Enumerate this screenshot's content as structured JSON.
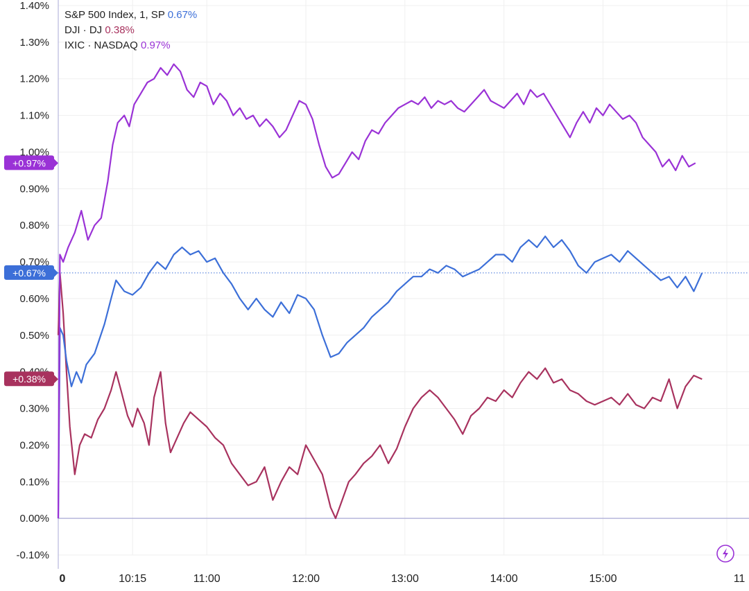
{
  "chart_data": {
    "type": "line",
    "ylim": [
      -0.1,
      1.4
    ],
    "yticks": [
      "1.40%",
      "1.30%",
      "1.20%",
      "1.10%",
      "1.00%",
      "0.90%",
      "0.80%",
      "0.70%",
      "0.60%",
      "0.50%",
      "0.40%",
      "0.30%",
      "0.20%",
      "0.10%",
      "0.00%",
      "-0.10%"
    ],
    "ytick_values": [
      1.4,
      1.3,
      1.2,
      1.1,
      1.0,
      0.9,
      0.8,
      0.7,
      0.6,
      0.5,
      0.4,
      0.3,
      0.2,
      0.1,
      0.0,
      -0.1
    ],
    "xlim": [
      "09:30",
      "16:15"
    ],
    "xticks": [
      {
        "label": "0",
        "time": "09:30",
        "bold": true
      },
      {
        "label": "10:15",
        "time": "10:15"
      },
      {
        "label": "11:00",
        "time": "11:00"
      },
      {
        "label": "12:00",
        "time": "12:00"
      },
      {
        "label": "13:00",
        "time": "13:00"
      },
      {
        "label": "14:00",
        "time": "14:00"
      },
      {
        "label": "15:00",
        "time": "15:00"
      },
      {
        "label": "11",
        "time": "16:15"
      }
    ],
    "grid": true,
    "legend_position": "top-left",
    "series": [
      {
        "name": "S&P 500 Index, 1, SP",
        "last_label": "0.67%",
        "badge": "+0.67%",
        "last_value": 0.67,
        "color": "#3c6fd8",
        "points": [
          [
            "09:30",
            0.0
          ],
          [
            "09:31",
            0.52
          ],
          [
            "09:33",
            0.5
          ],
          [
            "09:35",
            0.43
          ],
          [
            "09:38",
            0.36
          ],
          [
            "09:41",
            0.4
          ],
          [
            "09:44",
            0.37
          ],
          [
            "09:47",
            0.42
          ],
          [
            "09:52",
            0.45
          ],
          [
            "09:58",
            0.53
          ],
          [
            "10:02",
            0.6
          ],
          [
            "10:05",
            0.65
          ],
          [
            "10:10",
            0.62
          ],
          [
            "10:15",
            0.61
          ],
          [
            "10:20",
            0.63
          ],
          [
            "10:25",
            0.67
          ],
          [
            "10:30",
            0.7
          ],
          [
            "10:35",
            0.68
          ],
          [
            "10:40",
            0.72
          ],
          [
            "10:45",
            0.74
          ],
          [
            "10:50",
            0.72
          ],
          [
            "10:55",
            0.73
          ],
          [
            "11:00",
            0.7
          ],
          [
            "11:05",
            0.71
          ],
          [
            "11:10",
            0.67
          ],
          [
            "11:15",
            0.64
          ],
          [
            "11:20",
            0.6
          ],
          [
            "11:25",
            0.57
          ],
          [
            "11:30",
            0.6
          ],
          [
            "11:35",
            0.57
          ],
          [
            "11:40",
            0.55
          ],
          [
            "11:45",
            0.59
          ],
          [
            "11:50",
            0.56
          ],
          [
            "11:55",
            0.61
          ],
          [
            "12:00",
            0.6
          ],
          [
            "12:05",
            0.57
          ],
          [
            "12:10",
            0.5
          ],
          [
            "12:15",
            0.44
          ],
          [
            "12:20",
            0.45
          ],
          [
            "12:25",
            0.48
          ],
          [
            "12:30",
            0.5
          ],
          [
            "12:35",
            0.52
          ],
          [
            "12:40",
            0.55
          ],
          [
            "12:45",
            0.57
          ],
          [
            "12:50",
            0.59
          ],
          [
            "12:55",
            0.62
          ],
          [
            "13:00",
            0.64
          ],
          [
            "13:05",
            0.66
          ],
          [
            "13:10",
            0.66
          ],
          [
            "13:15",
            0.68
          ],
          [
            "13:20",
            0.67
          ],
          [
            "13:25",
            0.69
          ],
          [
            "13:30",
            0.68
          ],
          [
            "13:35",
            0.66
          ],
          [
            "13:40",
            0.67
          ],
          [
            "13:45",
            0.68
          ],
          [
            "13:50",
            0.7
          ],
          [
            "13:55",
            0.72
          ],
          [
            "14:00",
            0.72
          ],
          [
            "14:05",
            0.7
          ],
          [
            "14:10",
            0.74
          ],
          [
            "14:15",
            0.76
          ],
          [
            "14:20",
            0.74
          ],
          [
            "14:25",
            0.77
          ],
          [
            "14:30",
            0.74
          ],
          [
            "14:35",
            0.76
          ],
          [
            "14:40",
            0.73
          ],
          [
            "14:45",
            0.69
          ],
          [
            "14:50",
            0.67
          ],
          [
            "14:55",
            0.7
          ],
          [
            "15:00",
            0.71
          ],
          [
            "15:05",
            0.72
          ],
          [
            "15:10",
            0.7
          ],
          [
            "15:15",
            0.73
          ],
          [
            "15:20",
            0.71
          ],
          [
            "15:25",
            0.69
          ],
          [
            "15:30",
            0.67
          ],
          [
            "15:35",
            0.65
          ],
          [
            "15:40",
            0.66
          ],
          [
            "15:45",
            0.63
          ],
          [
            "15:50",
            0.66
          ],
          [
            "15:55",
            0.62
          ],
          [
            "16:00",
            0.67
          ]
        ]
      },
      {
        "name": "DJI · DJ",
        "last_label": "0.38%",
        "badge": "+0.38%",
        "last_value": 0.38,
        "color": "#a8325e",
        "points": [
          [
            "09:30",
            0.5
          ],
          [
            "09:31",
            0.67
          ],
          [
            "09:33",
            0.56
          ],
          [
            "09:35",
            0.4
          ],
          [
            "09:37",
            0.25
          ],
          [
            "09:40",
            0.12
          ],
          [
            "09:43",
            0.2
          ],
          [
            "09:46",
            0.23
          ],
          [
            "09:50",
            0.22
          ],
          [
            "09:54",
            0.27
          ],
          [
            "09:58",
            0.3
          ],
          [
            "10:02",
            0.35
          ],
          [
            "10:05",
            0.4
          ],
          [
            "10:08",
            0.35
          ],
          [
            "10:12",
            0.28
          ],
          [
            "10:15",
            0.25
          ],
          [
            "10:18",
            0.3
          ],
          [
            "10:22",
            0.26
          ],
          [
            "10:25",
            0.2
          ],
          [
            "10:28",
            0.33
          ],
          [
            "10:32",
            0.4
          ],
          [
            "10:35",
            0.26
          ],
          [
            "10:38",
            0.18
          ],
          [
            "10:42",
            0.22
          ],
          [
            "10:46",
            0.26
          ],
          [
            "10:50",
            0.29
          ],
          [
            "10:55",
            0.27
          ],
          [
            "11:00",
            0.25
          ],
          [
            "11:05",
            0.22
          ],
          [
            "11:10",
            0.2
          ],
          [
            "11:15",
            0.15
          ],
          [
            "11:20",
            0.12
          ],
          [
            "11:25",
            0.09
          ],
          [
            "11:30",
            0.1
          ],
          [
            "11:35",
            0.14
          ],
          [
            "11:40",
            0.05
          ],
          [
            "11:45",
            0.1
          ],
          [
            "11:50",
            0.14
          ],
          [
            "11:55",
            0.12
          ],
          [
            "12:00",
            0.2
          ],
          [
            "12:05",
            0.16
          ],
          [
            "12:10",
            0.12
          ],
          [
            "12:15",
            0.03
          ],
          [
            "12:18",
            0.0
          ],
          [
            "12:22",
            0.05
          ],
          [
            "12:26",
            0.1
          ],
          [
            "12:30",
            0.12
          ],
          [
            "12:35",
            0.15
          ],
          [
            "12:40",
            0.17
          ],
          [
            "12:45",
            0.2
          ],
          [
            "12:50",
            0.15
          ],
          [
            "12:55",
            0.19
          ],
          [
            "13:00",
            0.25
          ],
          [
            "13:05",
            0.3
          ],
          [
            "13:10",
            0.33
          ],
          [
            "13:15",
            0.35
          ],
          [
            "13:20",
            0.33
          ],
          [
            "13:25",
            0.3
          ],
          [
            "13:30",
            0.27
          ],
          [
            "13:35",
            0.23
          ],
          [
            "13:40",
            0.28
          ],
          [
            "13:45",
            0.3
          ],
          [
            "13:50",
            0.33
          ],
          [
            "13:55",
            0.32
          ],
          [
            "14:00",
            0.35
          ],
          [
            "14:05",
            0.33
          ],
          [
            "14:10",
            0.37
          ],
          [
            "14:15",
            0.4
          ],
          [
            "14:20",
            0.38
          ],
          [
            "14:25",
            0.41
          ],
          [
            "14:30",
            0.37
          ],
          [
            "14:35",
            0.38
          ],
          [
            "14:40",
            0.35
          ],
          [
            "14:45",
            0.34
          ],
          [
            "14:50",
            0.32
          ],
          [
            "14:55",
            0.31
          ],
          [
            "15:00",
            0.32
          ],
          [
            "15:05",
            0.33
          ],
          [
            "15:10",
            0.31
          ],
          [
            "15:15",
            0.34
          ],
          [
            "15:20",
            0.31
          ],
          [
            "15:25",
            0.3
          ],
          [
            "15:30",
            0.33
          ],
          [
            "15:35",
            0.32
          ],
          [
            "15:40",
            0.38
          ],
          [
            "15:45",
            0.3
          ],
          [
            "15:50",
            0.36
          ],
          [
            "15:55",
            0.39
          ],
          [
            "16:00",
            0.38
          ]
        ]
      },
      {
        "name": "IXIC · NASDAQ",
        "last_label": "0.97%",
        "badge": "+0.97%",
        "last_value": 0.97,
        "color": "#9a32d6",
        "points": [
          [
            "09:30",
            0.0
          ],
          [
            "09:31",
            0.72
          ],
          [
            "09:33",
            0.7
          ],
          [
            "09:36",
            0.74
          ],
          [
            "09:40",
            0.78
          ],
          [
            "09:44",
            0.84
          ],
          [
            "09:48",
            0.76
          ],
          [
            "09:52",
            0.8
          ],
          [
            "09:56",
            0.82
          ],
          [
            "10:00",
            0.92
          ],
          [
            "10:03",
            1.02
          ],
          [
            "10:06",
            1.08
          ],
          [
            "10:10",
            1.1
          ],
          [
            "10:13",
            1.07
          ],
          [
            "10:16",
            1.13
          ],
          [
            "10:20",
            1.16
          ],
          [
            "10:24",
            1.19
          ],
          [
            "10:28",
            1.2
          ],
          [
            "10:32",
            1.23
          ],
          [
            "10:36",
            1.21
          ],
          [
            "10:40",
            1.24
          ],
          [
            "10:44",
            1.22
          ],
          [
            "10:48",
            1.17
          ],
          [
            "10:52",
            1.15
          ],
          [
            "10:56",
            1.19
          ],
          [
            "11:00",
            1.18
          ],
          [
            "11:04",
            1.13
          ],
          [
            "11:08",
            1.16
          ],
          [
            "11:12",
            1.14
          ],
          [
            "11:16",
            1.1
          ],
          [
            "11:20",
            1.12
          ],
          [
            "11:24",
            1.09
          ],
          [
            "11:28",
            1.1
          ],
          [
            "11:32",
            1.07
          ],
          [
            "11:36",
            1.09
          ],
          [
            "11:40",
            1.07
          ],
          [
            "11:44",
            1.04
          ],
          [
            "11:48",
            1.06
          ],
          [
            "11:52",
            1.1
          ],
          [
            "11:56",
            1.14
          ],
          [
            "12:00",
            1.13
          ],
          [
            "12:04",
            1.09
          ],
          [
            "12:08",
            1.02
          ],
          [
            "12:12",
            0.96
          ],
          [
            "12:16",
            0.93
          ],
          [
            "12:20",
            0.94
          ],
          [
            "12:24",
            0.97
          ],
          [
            "12:28",
            1.0
          ],
          [
            "12:32",
            0.98
          ],
          [
            "12:36",
            1.03
          ],
          [
            "12:40",
            1.06
          ],
          [
            "12:44",
            1.05
          ],
          [
            "12:48",
            1.08
          ],
          [
            "12:52",
            1.1
          ],
          [
            "12:56",
            1.12
          ],
          [
            "13:00",
            1.13
          ],
          [
            "13:04",
            1.14
          ],
          [
            "13:08",
            1.13
          ],
          [
            "13:12",
            1.15
          ],
          [
            "13:16",
            1.12
          ],
          [
            "13:20",
            1.14
          ],
          [
            "13:24",
            1.13
          ],
          [
            "13:28",
            1.14
          ],
          [
            "13:32",
            1.12
          ],
          [
            "13:36",
            1.11
          ],
          [
            "13:40",
            1.13
          ],
          [
            "13:44",
            1.15
          ],
          [
            "13:48",
            1.17
          ],
          [
            "13:52",
            1.14
          ],
          [
            "13:56",
            1.13
          ],
          [
            "14:00",
            1.12
          ],
          [
            "14:04",
            1.14
          ],
          [
            "14:08",
            1.16
          ],
          [
            "14:12",
            1.13
          ],
          [
            "14:16",
            1.17
          ],
          [
            "14:20",
            1.15
          ],
          [
            "14:24",
            1.16
          ],
          [
            "14:28",
            1.13
          ],
          [
            "14:32",
            1.1
          ],
          [
            "14:36",
            1.07
          ],
          [
            "14:40",
            1.04
          ],
          [
            "14:44",
            1.08
          ],
          [
            "14:48",
            1.11
          ],
          [
            "14:52",
            1.08
          ],
          [
            "14:56",
            1.12
          ],
          [
            "15:00",
            1.1
          ],
          [
            "15:04",
            1.13
          ],
          [
            "15:08",
            1.11
          ],
          [
            "15:12",
            1.09
          ],
          [
            "15:16",
            1.1
          ],
          [
            "15:20",
            1.08
          ],
          [
            "15:24",
            1.04
          ],
          [
            "15:28",
            1.02
          ],
          [
            "15:32",
            1.0
          ],
          [
            "15:36",
            0.96
          ],
          [
            "15:40",
            0.98
          ],
          [
            "15:44",
            0.95
          ],
          [
            "15:48",
            0.99
          ],
          [
            "15:52",
            0.96
          ],
          [
            "15:56",
            0.97
          ]
        ]
      }
    ]
  },
  "lightning_icon": "lightning-icon",
  "grid_color": "#efefef",
  "axis_color": "#a9a9d6",
  "reference_line_color": "#3c6fd8"
}
